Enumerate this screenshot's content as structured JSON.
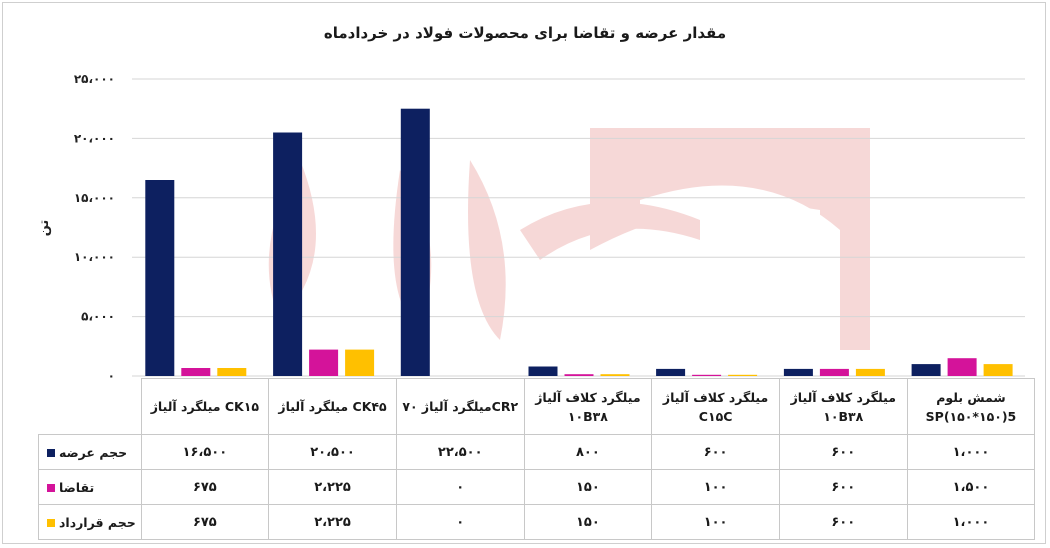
{
  "chart_data": {
    "type": "bar",
    "title": "مقدار عرضه و تقاضا برای محصولات فولاد در خردادماه",
    "ylabel": "تن",
    "ylim": [
      0,
      25000
    ],
    "yticks": [
      "۰",
      "۵،۰۰۰",
      "۱۰،۰۰۰",
      "۱۵،۰۰۰",
      "۲۰،۰۰۰",
      "۲۵،۰۰۰"
    ],
    "grid": true,
    "legend": "data-table-left",
    "categories": [
      {
        "line1": "CK۱۵ میلگرد آلیاژ",
        "line2": ""
      },
      {
        "line1": "CK۴۵ میلگرد آلیاژ",
        "line2": ""
      },
      {
        "line1": "CR۲میلگرد آلیاژ ۷۰",
        "line2": ""
      },
      {
        "line1": "میلگرد کلاف آلیاژ",
        "line2": "۱۰B۳۸"
      },
      {
        "line1": "میلگرد کلاف آلیاژ",
        "line2": "C۱۵C"
      },
      {
        "line1": "میلگرد کلاف آلیاژ",
        "line2": "۱۰B۳۸"
      },
      {
        "line1": "شمش بلوم",
        "line2": "SP(۱۵۰*۱۵۰)5"
      }
    ],
    "series": [
      {
        "name": "حجم عرضه",
        "color": "#0d2060",
        "values": [
          16500,
          20500,
          22500,
          800,
          600,
          600,
          1000
        ],
        "labels": [
          "۱۶،۵۰۰",
          "۲۰،۵۰۰",
          "۲۲،۵۰۰",
          "۸۰۰",
          "۶۰۰",
          "۶۰۰",
          "۱،۰۰۰"
        ]
      },
      {
        "name": "تقاضا",
        "color": "#d4139a",
        "values": [
          675,
          2225,
          0,
          150,
          100,
          600,
          1500
        ],
        "labels": [
          "۶۷۵",
          "۲،۲۲۵",
          "۰",
          "۱۵۰",
          "۱۰۰",
          "۶۰۰",
          "۱،۵۰۰"
        ]
      },
      {
        "name": "حجم قرارداد",
        "color": "#ffc000",
        "values": [
          675,
          2225,
          0,
          150,
          100,
          600,
          1000
        ],
        "labels": [
          "۶۷۵",
          "۲،۲۲۵",
          "۰",
          "۱۵۰",
          "۱۰۰",
          "۶۰۰",
          "۱،۰۰۰"
        ]
      }
    ]
  }
}
